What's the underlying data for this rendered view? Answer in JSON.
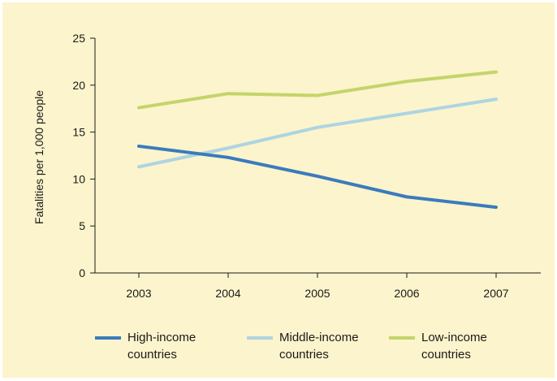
{
  "chart_data": {
    "type": "line",
    "title": "",
    "xlabel": "",
    "ylabel": "Fatalities per 1,000 people",
    "categories": [
      "2003",
      "2004",
      "2005",
      "2006",
      "2007"
    ],
    "ylim": [
      0,
      25
    ],
    "yticks": [
      "0",
      "5",
      "10",
      "15",
      "20",
      "25"
    ],
    "grid": false,
    "legend_position": "bottom",
    "series": [
      {
        "name": "High-income countries",
        "color": "#3a7bbd",
        "values": [
          13.5,
          12.3,
          10.3,
          8.1,
          7.0
        ]
      },
      {
        "name": "Middle-income countries",
        "color": "#aed4e3",
        "values": [
          11.3,
          13.3,
          15.5,
          17.0,
          18.5
        ]
      },
      {
        "name": "Low-income countries",
        "color": "#c3d56a",
        "values": [
          17.6,
          19.1,
          18.9,
          20.4,
          21.4
        ]
      }
    ]
  },
  "legend": {
    "items": [
      {
        "line1": "High-income",
        "line2": "countries"
      },
      {
        "line1": "Middle-income",
        "line2": "countries"
      },
      {
        "line1": "Low-income",
        "line2": "countries"
      }
    ]
  }
}
